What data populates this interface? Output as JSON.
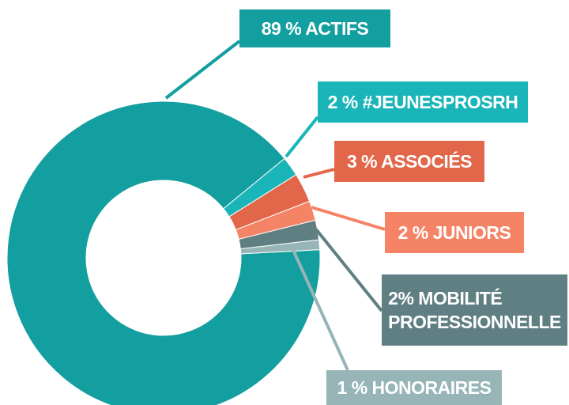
{
  "chart_data": {
    "type": "donut",
    "values": [
      89,
      2,
      3,
      2,
      2,
      1
    ],
    "value_labels": [
      "89 % ACTIFS",
      "2 % #JEUNESPROSRH",
      "3 % ASSOCIÉS",
      "2 % JUNIORS",
      "2% MOBILITÉ PROFESSIONNELLE",
      "1 % HONORAIRES"
    ],
    "colors": [
      "#139e9f",
      "#1ab5b8",
      "#e2674a",
      "#f58466",
      "#5f7f82",
      "#97b5b7"
    ]
  }
}
